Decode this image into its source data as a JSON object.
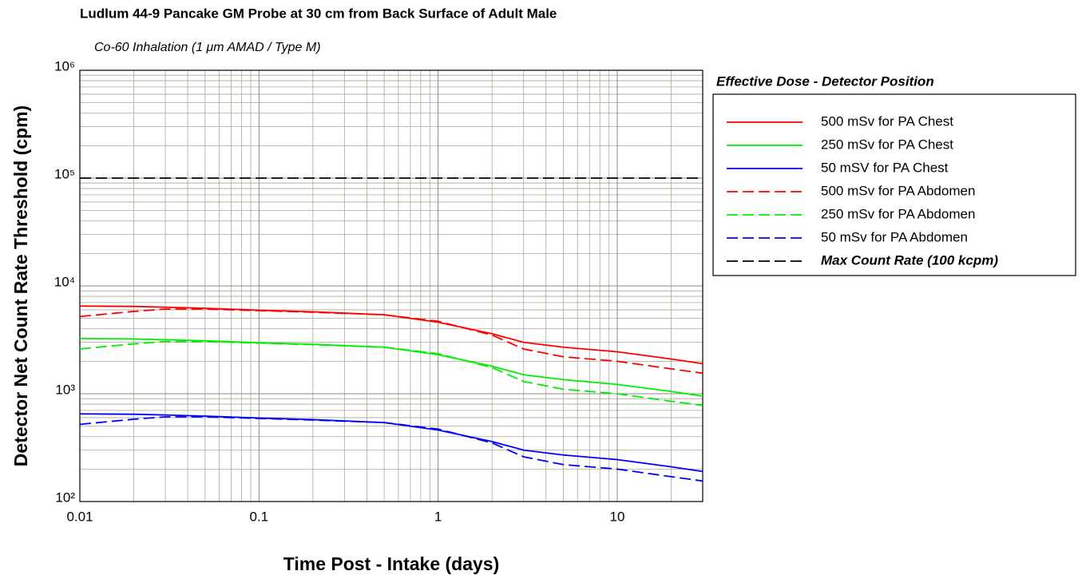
{
  "chart_data": {
    "type": "line",
    "title": "Ludlum 44-9 Pancake GM Probe at 30 cm from Back Surface of Adult Male",
    "subtitle": "Co-60 Inhalation (1 μm AMAD / Type M)",
    "x_label": "Time Post - Intake (days)",
    "y_label": "Detector Net Count Rate Threshold (cpm)",
    "legend_title": "Effective Dose - Detector Position",
    "legend": "right",
    "x_scale": "log",
    "y_scale": "log",
    "grid": "minor",
    "xlim": [
      0.01,
      30
    ],
    "ylim": [
      100,
      1000000
    ],
    "xticks": [
      0.01,
      0.1,
      1,
      10
    ],
    "yticks": [
      {
        "value": 100,
        "label": "10²"
      },
      {
        "value": 1000,
        "label": "10³"
      },
      {
        "value": 10000,
        "label": "10⁴"
      },
      {
        "value": 100000,
        "label": "10⁵"
      },
      {
        "value": 1000000,
        "label": "10⁶"
      }
    ],
    "x": [
      0.01,
      0.02,
      0.03,
      0.05,
      0.1,
      0.2,
      0.5,
      1,
      2,
      3,
      5,
      10,
      20,
      30
    ],
    "series": [
      {
        "name": "500 mSv for PA Chest",
        "color": "#ff0000",
        "dash": "solid",
        "values": [
          6500,
          6450,
          6350,
          6200,
          5950,
          5750,
          5400,
          4600,
          3600,
          3000,
          2700,
          2450,
          2100,
          1900
        ]
      },
      {
        "name": "250 mSv for PA Chest",
        "color": "#00ee00",
        "dash": "solid",
        "values": [
          3250,
          3220,
          3170,
          3100,
          2970,
          2870,
          2700,
          2300,
          1800,
          1500,
          1350,
          1220,
          1050,
          950
        ]
      },
      {
        "name": "50 mSV for PA Chest",
        "color": "#0000ff",
        "dash": "solid",
        "values": [
          650,
          645,
          635,
          620,
          595,
          575,
          540,
          460,
          360,
          300,
          270,
          245,
          210,
          190
        ]
      },
      {
        "name": "500 mSv for PA Abdomen",
        "color": "#ff0000",
        "dash": "dashed",
        "values": [
          5200,
          5800,
          6100,
          6100,
          5900,
          5700,
          5400,
          4700,
          3500,
          2600,
          2200,
          2000,
          1700,
          1550
        ]
      },
      {
        "name": "250 mSv for PA Abdomen",
        "color": "#00ee00",
        "dash": "dashed",
        "values": [
          2600,
          2900,
          3050,
          3050,
          2950,
          2850,
          2700,
          2350,
          1750,
          1300,
          1100,
          1000,
          850,
          780
        ]
      },
      {
        "name": "50 mSv for PA Abdomen",
        "color": "#0000ff",
        "dash": "dashed",
        "values": [
          520,
          580,
          610,
          610,
          590,
          570,
          540,
          470,
          350,
          260,
          220,
          200,
          170,
          155
        ]
      },
      {
        "name": "Max Count Rate (100 kcpm)",
        "color": "#000000",
        "dash": "dashed",
        "values": [
          100000,
          100000,
          100000,
          100000,
          100000,
          100000,
          100000,
          100000,
          100000,
          100000,
          100000,
          100000,
          100000,
          100000
        ]
      }
    ]
  }
}
